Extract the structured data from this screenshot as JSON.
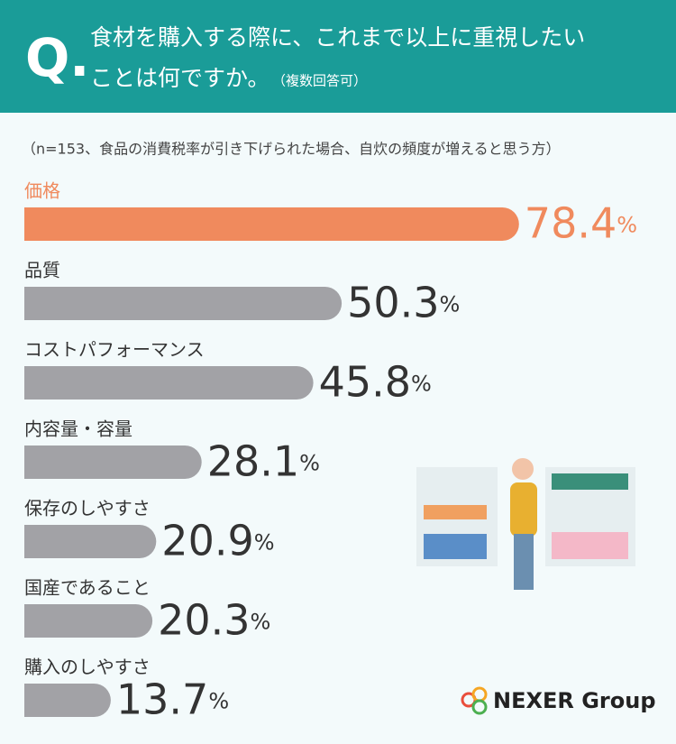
{
  "chart_data": {
    "type": "bar",
    "q_label": "Q.",
    "title": [
      "食材を購入する際に、これまで以上に重視したい",
      "ことは何ですか。"
    ],
    "title_note": "（複数回答可）",
    "subtitle": "（n=153、食品の消費税率が引き下げられた場合、自炊の頻度が増えると思う方）",
    "categories": [
      "価格",
      "品質",
      "コストパフォーマンス",
      "内容量・容量",
      "保存のしやすさ",
      "国産であること",
      "購入のしやすさ"
    ],
    "values": [
      78.4,
      50.3,
      45.8,
      28.1,
      20.9,
      20.3,
      13.7
    ],
    "value_labels": [
      "78.4%",
      "50.3%",
      "45.8%",
      "28.1%",
      "20.9%",
      "20.3%",
      "13.7%"
    ],
    "colors": [
      "#f08a5d",
      "#a2a2a6",
      "#a2a2a6",
      "#a2a2a6",
      "#a2a2a6",
      "#a2a2a6",
      "#a2a2a6"
    ],
    "label_colors": [
      "#f08a5d",
      "#333333",
      "#333333",
      "#333333",
      "#333333",
      "#333333",
      "#333333"
    ],
    "logo": "NEXER Group"
  }
}
